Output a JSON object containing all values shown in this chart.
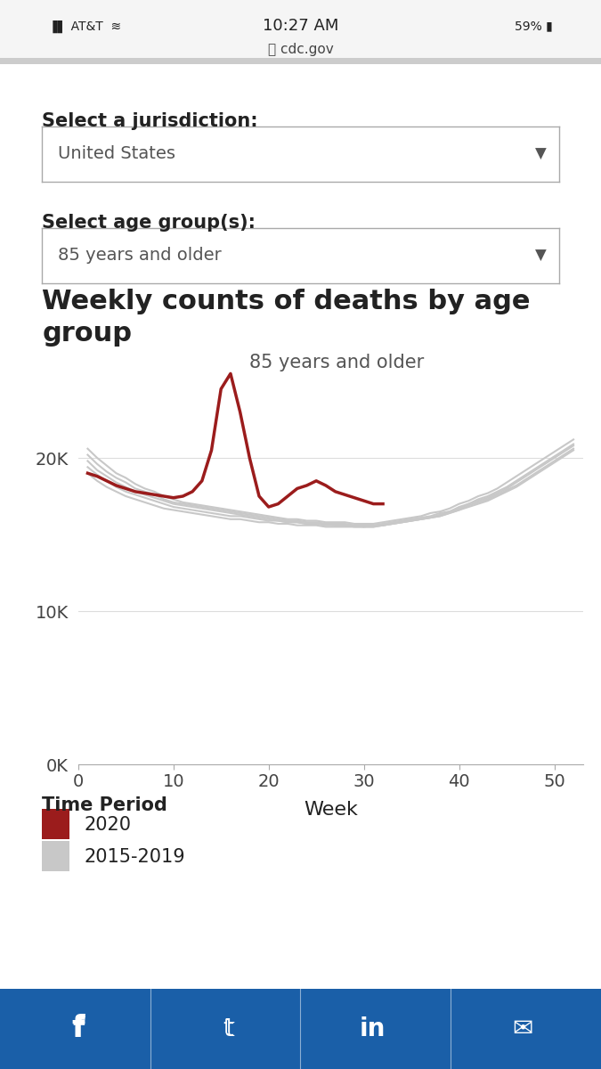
{
  "title": "Weekly counts of deaths by age\ngroup",
  "chart_label": "85 years and older",
  "xlabel": "Week",
  "ylabel": "",
  "xlim": [
    0,
    53
  ],
  "ylim": [
    0,
    30000
  ],
  "yticks": [
    0,
    10000,
    20000
  ],
  "ytick_labels": [
    "0K",
    "10K",
    "20K"
  ],
  "xticks": [
    0,
    10,
    20,
    30,
    40,
    50
  ],
  "background_color": "#ffffff",
  "ui_label_jurisdiction": "Select a jurisdiction:",
  "ui_value_jurisdiction": "United States",
  "ui_label_age": "Select age group(s):",
  "ui_value_age": "85 years and older",
  "legend_title": "Time Period",
  "legend_2020": "2020",
  "legend_hist": "2015-2019",
  "color_2020": "#9b1c1c",
  "color_hist": "#c8c8c8",
  "color_footer": "#1a5fa8",
  "footer_icons": [
    "f",
    "t",
    "in",
    "✉"
  ],
  "2020_weeks": [
    1,
    2,
    3,
    4,
    5,
    6,
    7,
    8,
    9,
    10,
    11,
    12,
    13,
    14,
    15,
    16,
    17,
    18,
    19,
    20,
    21,
    22,
    23,
    24,
    25,
    26,
    27,
    28,
    29,
    30,
    31,
    32
  ],
  "2020_values": [
    19000,
    18800,
    18500,
    18200,
    18000,
    17800,
    17700,
    17600,
    17500,
    17400,
    17500,
    17800,
    18500,
    20500,
    24500,
    25500,
    23000,
    20000,
    17500,
    16800,
    17000,
    17500,
    18000,
    18200,
    18500,
    18200,
    17800,
    17600,
    17400,
    17200,
    17000,
    17000
  ],
  "hist_series": [
    [
      1,
      2,
      3,
      4,
      5,
      6,
      7,
      8,
      9,
      10,
      11,
      12,
      13,
      14,
      15,
      16,
      17,
      18,
      19,
      20,
      21,
      22,
      23,
      24,
      25,
      26,
      27,
      28,
      29,
      30,
      31,
      32,
      33,
      34,
      35,
      36,
      37,
      38,
      39,
      40,
      41,
      42,
      43,
      44,
      45,
      46,
      47,
      48,
      49,
      50,
      51,
      52
    ],
    [
      1,
      2,
      3,
      4,
      5,
      6,
      7,
      8,
      9,
      10,
      11,
      12,
      13,
      14,
      15,
      16,
      17,
      18,
      19,
      20,
      21,
      22,
      23,
      24,
      25,
      26,
      27,
      28,
      29,
      30,
      31,
      32,
      33,
      34,
      35,
      36,
      37,
      38,
      39,
      40,
      41,
      42,
      43,
      44,
      45,
      46,
      47,
      48,
      49,
      50,
      51,
      52
    ],
    [
      1,
      2,
      3,
      4,
      5,
      6,
      7,
      8,
      9,
      10,
      11,
      12,
      13,
      14,
      15,
      16,
      17,
      18,
      19,
      20,
      21,
      22,
      23,
      24,
      25,
      26,
      27,
      28,
      29,
      30,
      31,
      32,
      33,
      34,
      35,
      36,
      37,
      38,
      39,
      40,
      41,
      42,
      43,
      44,
      45,
      46,
      47,
      48,
      49,
      50,
      51,
      52
    ],
    [
      1,
      2,
      3,
      4,
      5,
      6,
      7,
      8,
      9,
      10,
      11,
      12,
      13,
      14,
      15,
      16,
      17,
      18,
      19,
      20,
      21,
      22,
      23,
      24,
      25,
      26,
      27,
      28,
      29,
      30,
      31,
      32,
      33,
      34,
      35,
      36,
      37,
      38,
      39,
      40,
      41,
      42,
      43,
      44,
      45,
      46,
      47,
      48,
      49,
      50,
      51,
      52
    ],
    [
      1,
      2,
      3,
      4,
      5,
      6,
      7,
      8,
      9,
      10,
      11,
      12,
      13,
      14,
      15,
      16,
      17,
      18,
      19,
      20,
      21,
      22,
      23,
      24,
      25,
      26,
      27,
      28,
      29,
      30,
      31,
      32,
      33,
      34,
      35,
      36,
      37,
      38,
      39,
      40,
      41,
      42,
      43,
      44,
      45,
      46,
      47,
      48,
      49,
      50,
      51,
      52
    ]
  ],
  "hist_values": [
    [
      19800,
      19200,
      18800,
      18400,
      18100,
      17800,
      17600,
      17400,
      17200,
      17000,
      16900,
      16800,
      16700,
      16600,
      16500,
      16400,
      16300,
      16200,
      16100,
      16000,
      15900,
      15800,
      15800,
      15700,
      15700,
      15600,
      15600,
      15600,
      15500,
      15500,
      15500,
      15600,
      15700,
      15800,
      15900,
      16000,
      16100,
      16200,
      16400,
      16600,
      16900,
      17100,
      17300,
      17600,
      17900,
      18200,
      18600,
      19000,
      19400,
      19800,
      20200,
      20600
    ],
    [
      20200,
      19600,
      19100,
      18700,
      18400,
      18000,
      17800,
      17600,
      17300,
      17100,
      17000,
      16900,
      16800,
      16700,
      16600,
      16500,
      16400,
      16300,
      16200,
      16100,
      16000,
      15900,
      15900,
      15800,
      15800,
      15700,
      15700,
      15700,
      15600,
      15600,
      15600,
      15700,
      15800,
      15900,
      16000,
      16100,
      16200,
      16400,
      16500,
      16800,
      17000,
      17300,
      17500,
      17800,
      18100,
      18500,
      18900,
      19300,
      19700,
      20100,
      20500,
      20900
    ],
    [
      19400,
      18900,
      18500,
      18100,
      17800,
      17600,
      17400,
      17200,
      17000,
      16800,
      16700,
      16600,
      16500,
      16400,
      16300,
      16200,
      16200,
      16100,
      16000,
      15900,
      15900,
      15800,
      15800,
      15700,
      15700,
      15700,
      15600,
      15600,
      15600,
      15500,
      15600,
      15600,
      15700,
      15800,
      15900,
      16000,
      16100,
      16200,
      16400,
      16600,
      16800,
      17000,
      17200,
      17500,
      17800,
      18100,
      18500,
      18900,
      19300,
      19700,
      20100,
      20500
    ],
    [
      20600,
      20000,
      19500,
      19000,
      18700,
      18300,
      18000,
      17800,
      17500,
      17300,
      17100,
      17000,
      16900,
      16800,
      16700,
      16600,
      16500,
      16400,
      16300,
      16200,
      16100,
      16000,
      16000,
      15900,
      15900,
      15800,
      15800,
      15800,
      15700,
      15700,
      15700,
      15800,
      15900,
      16000,
      16100,
      16200,
      16400,
      16500,
      16700,
      17000,
      17200,
      17500,
      17700,
      18000,
      18400,
      18800,
      19200,
      19600,
      20000,
      20400,
      20800,
      21200
    ],
    [
      19000,
      18500,
      18100,
      17800,
      17500,
      17300,
      17100,
      16900,
      16700,
      16600,
      16500,
      16400,
      16300,
      16200,
      16100,
      16000,
      16000,
      15900,
      15800,
      15800,
      15700,
      15700,
      15600,
      15600,
      15600,
      15500,
      15500,
      15500,
      15500,
      15500,
      15500,
      15600,
      15700,
      15800,
      15900,
      16000,
      16100,
      16300,
      16500,
      16700,
      17000,
      17200,
      17400,
      17700,
      18000,
      18400,
      18800,
      19200,
      19600,
      20000,
      20400,
      20800
    ]
  ]
}
